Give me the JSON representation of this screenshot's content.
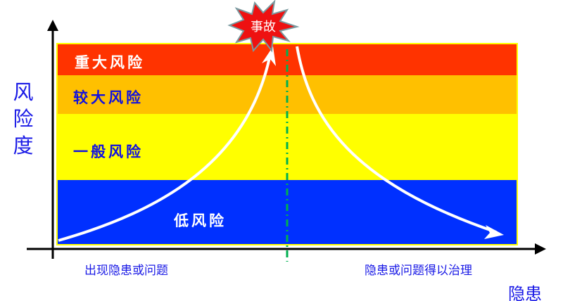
{
  "y_axis_label": "风险度",
  "x_axis_label": "隐患",
  "bands": [
    {
      "label": "重大风险",
      "color": "#ff3300"
    },
    {
      "label": "较大风险",
      "color": "#ffc000"
    },
    {
      "label": "一般风险",
      "color": "#ffff00"
    },
    {
      "label": "低风险",
      "color": "#0030ff"
    }
  ],
  "accident_label": "事故",
  "left_caption": "出现隐患或问题",
  "right_caption": "隐患或问题得以治理",
  "divider_color": "#00b050"
}
